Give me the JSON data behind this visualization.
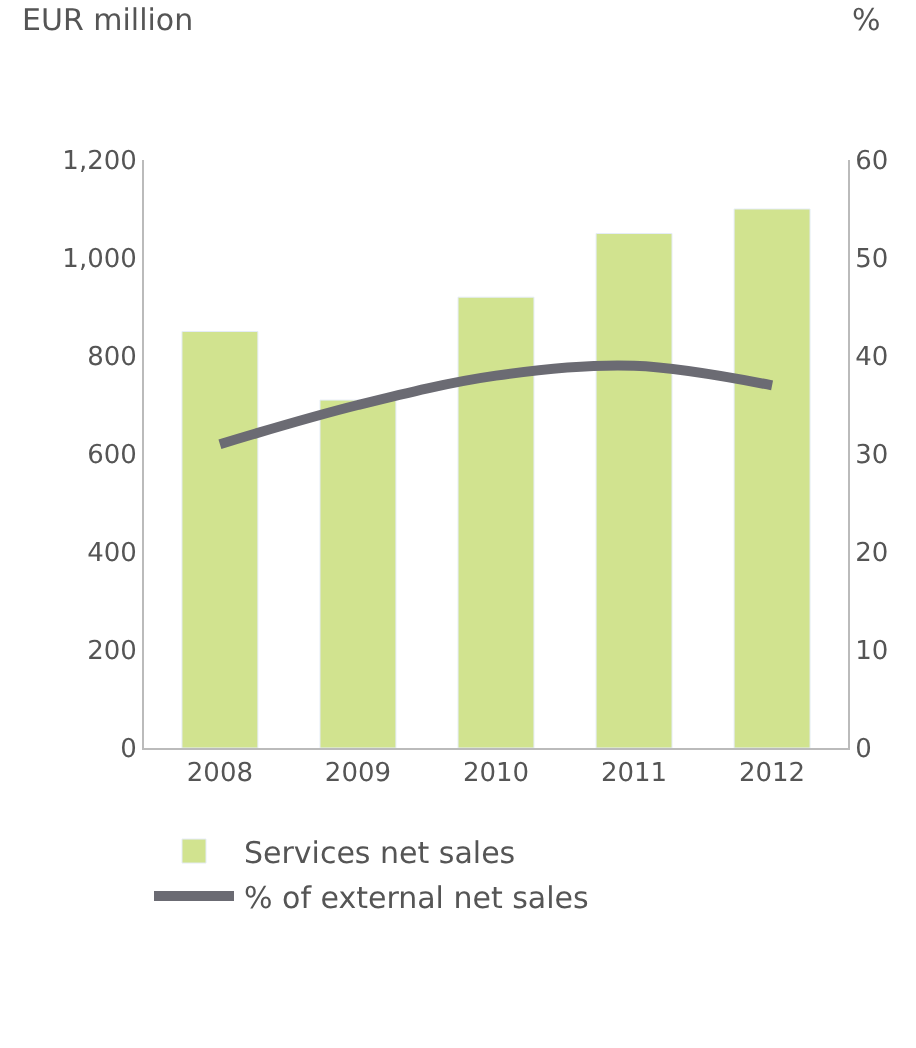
{
  "chart_data": {
    "type": "bar",
    "ylabel": "EUR million",
    "y2label": "%",
    "categories": [
      "2008",
      "2009",
      "2010",
      "2011",
      "2012"
    ],
    "series": [
      {
        "name": "Services net sales",
        "color": "#d1e38f",
        "values": [
          850,
          710,
          920,
          1050,
          1100
        ]
      },
      {
        "name": "% of external net sales",
        "color": "#6b6b73",
        "type": "line",
        "axis": "y2",
        "values": [
          31,
          35,
          38,
          39,
          37
        ]
      }
    ],
    "ylim": [
      0,
      1200
    ],
    "yticks": [
      0,
      200,
      400,
      600,
      800,
      {
        "value": 1000,
        "label": "1,000"
      },
      {
        "value": 1200,
        "label": "1,200"
      }
    ],
    "y2lim": [
      0,
      60
    ],
    "y2ticks": [
      0,
      10,
      20,
      30,
      40,
      50,
      60
    ],
    "legend": "bottom",
    "marker": "none"
  }
}
